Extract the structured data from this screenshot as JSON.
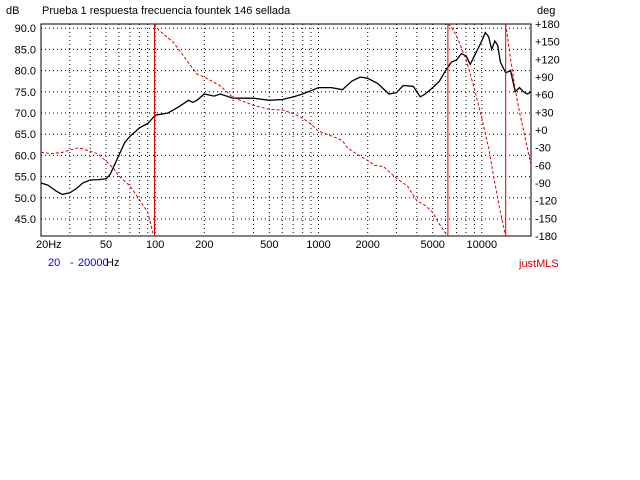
{
  "chart_data": {
    "type": "line",
    "title": "Prueba 1 respuesta frecuencia fountek 146 sellada",
    "ylabel_left": "dB",
    "ylabel_right": "deg",
    "x_scale": "log",
    "xlim": [
      20,
      20000
    ],
    "ylim_left": [
      41,
      91
    ],
    "ylim_right": [
      -180,
      180
    ],
    "x_ticks": [
      20,
      50,
      100,
      200,
      500,
      1000,
      2000,
      5000,
      10000
    ],
    "x_tick_labels": [
      "20Hz",
      "50",
      "100",
      "200",
      "500",
      "1000",
      "2000",
      "5000",
      "10000"
    ],
    "y_ticks_left": [
      90,
      85,
      80,
      75,
      70,
      65,
      60,
      55,
      50,
      45
    ],
    "y_tick_labels_left": [
      "90.0",
      "85.0",
      "80.0",
      "75.0",
      "70.0",
      "65.0",
      "60.0",
      "55.0",
      "50.0",
      "45.0"
    ],
    "y_ticks_right": [
      180,
      150,
      120,
      90,
      60,
      30,
      0,
      -30,
      -60,
      -90,
      -120,
      -150,
      -180
    ],
    "y_tick_labels_right": [
      "+180",
      "+150",
      "+120",
      "+90",
      "+60",
      "+30",
      "+0",
      "-30",
      "-60",
      "-90",
      "-120",
      "-150",
      "-180"
    ],
    "grid": true,
    "grid_style": "dotted",
    "series": [
      {
        "axis": "left",
        "color": "#000000",
        "style": "solid",
        "points": [
          [
            20,
            53.5
          ],
          [
            22,
            53
          ],
          [
            25,
            51.5
          ],
          [
            27,
            50.8
          ],
          [
            30,
            51.2
          ],
          [
            33,
            52.2
          ],
          [
            36,
            53.5
          ],
          [
            40,
            54.2
          ],
          [
            45,
            54.3
          ],
          [
            50,
            54.5
          ],
          [
            53,
            55.5
          ],
          [
            56,
            57.5
          ],
          [
            60,
            60
          ],
          [
            65,
            63
          ],
          [
            70,
            64.5
          ],
          [
            75,
            65.5
          ],
          [
            80,
            66.5
          ],
          [
            90,
            67.5
          ],
          [
            100,
            69.5
          ],
          [
            120,
            70
          ],
          [
            140,
            71.5
          ],
          [
            160,
            73
          ],
          [
            170,
            72.5
          ],
          [
            180,
            73
          ],
          [
            200,
            74.5
          ],
          [
            230,
            74
          ],
          [
            250,
            74.5
          ],
          [
            300,
            73.5
          ],
          [
            400,
            73.5
          ],
          [
            500,
            73
          ],
          [
            600,
            73.2
          ],
          [
            700,
            73.8
          ],
          [
            800,
            74.5
          ],
          [
            1000,
            76
          ],
          [
            1200,
            76
          ],
          [
            1400,
            75.5
          ],
          [
            1600,
            77.5
          ],
          [
            1800,
            78.5
          ],
          [
            2000,
            78.2
          ],
          [
            2300,
            77
          ],
          [
            2700,
            74.5
          ],
          [
            3000,
            74.8
          ],
          [
            3300,
            76.5
          ],
          [
            3800,
            76.3
          ],
          [
            4200,
            73.8
          ],
          [
            4500,
            74.5
          ],
          [
            5000,
            76
          ],
          [
            5500,
            77.5
          ],
          [
            6000,
            80
          ],
          [
            6500,
            82
          ],
          [
            7000,
            82.5
          ],
          [
            7500,
            84
          ],
          [
            8000,
            83.5
          ],
          [
            8500,
            81.5
          ],
          [
            9000,
            83.5
          ],
          [
            10000,
            87
          ],
          [
            10500,
            89
          ],
          [
            11000,
            88
          ],
          [
            11500,
            85
          ],
          [
            12000,
            87
          ],
          [
            12500,
            86
          ],
          [
            13000,
            82
          ],
          [
            14000,
            79.5
          ],
          [
            15000,
            80
          ],
          [
            16000,
            75
          ],
          [
            17000,
            76
          ],
          [
            18000,
            75
          ],
          [
            19000,
            74.5
          ],
          [
            20000,
            75
          ]
        ]
      },
      {
        "axis": "right",
        "color": "#e00000",
        "style": "dashed",
        "points": [
          [
            20,
            -38
          ],
          [
            23,
            -40
          ],
          [
            27,
            -38
          ],
          [
            30,
            -34
          ],
          [
            34,
            -30
          ],
          [
            40,
            -36
          ],
          [
            45,
            -41
          ],
          [
            50,
            -53
          ],
          [
            56,
            -66
          ],
          [
            60,
            -78
          ],
          [
            70,
            -95
          ],
          [
            80,
            -118
          ],
          [
            90,
            -140
          ],
          [
            97,
            -175
          ],
          [
            99,
            -180
          ],
          [
            99,
            180
          ],
          [
            101,
            175
          ],
          [
            110,
            165
          ],
          [
            130,
            148
          ],
          [
            150,
            125
          ],
          [
            180,
            95
          ],
          [
            200,
            90
          ],
          [
            250,
            75
          ],
          [
            300,
            55
          ],
          [
            400,
            42
          ],
          [
            500,
            35
          ],
          [
            600,
            34
          ],
          [
            700,
            28
          ],
          [
            800,
            20
          ],
          [
            900,
            10
          ],
          [
            1000,
            -2
          ],
          [
            1200,
            -10
          ],
          [
            1400,
            -18
          ],
          [
            1500,
            -30
          ],
          [
            1700,
            -40
          ],
          [
            2000,
            -52
          ],
          [
            2200,
            -60
          ],
          [
            2500,
            -62
          ],
          [
            3000,
            -82
          ],
          [
            3500,
            -95
          ],
          [
            4000,
            -120
          ],
          [
            4500,
            -128
          ],
          [
            5000,
            -140
          ],
          [
            5500,
            -160
          ],
          [
            6000,
            -175
          ],
          [
            6200,
            -180
          ],
          [
            6200,
            180
          ],
          [
            6500,
            175
          ],
          [
            7000,
            160
          ],
          [
            8000,
            120
          ],
          [
            9000,
            70
          ],
          [
            10000,
            20
          ],
          [
            11000,
            -30
          ],
          [
            12000,
            -90
          ],
          [
            13000,
            -140
          ],
          [
            14000,
            -180
          ],
          [
            14000,
            180
          ],
          [
            15000,
            120
          ],
          [
            16000,
            70
          ],
          [
            17000,
            30
          ],
          [
            18000,
            0
          ],
          [
            20000,
            -60
          ]
        ]
      }
    ],
    "range_label": "20",
    "range_separator": "-",
    "range_end": "20000",
    "range_unit": "Hz",
    "brand": "justMLS"
  }
}
